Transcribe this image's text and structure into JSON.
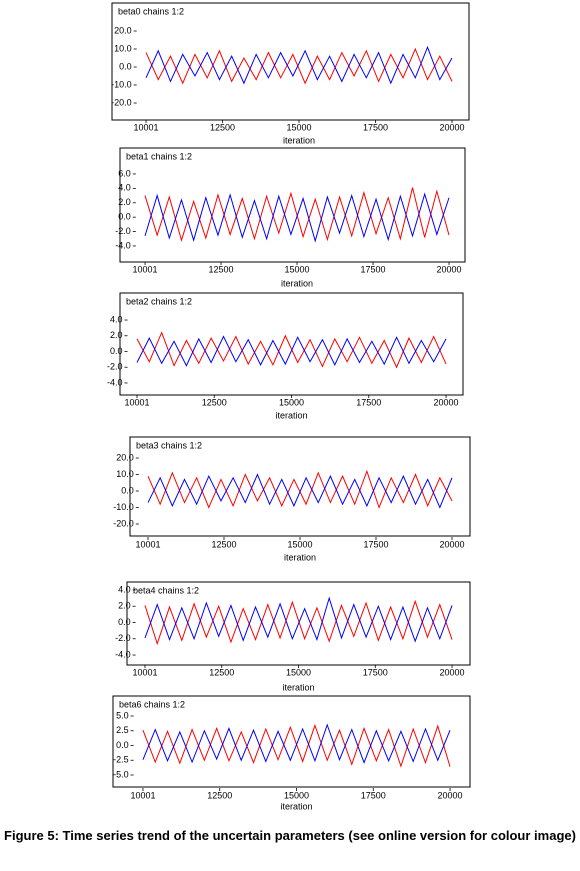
{
  "chart_data": [
    {
      "type": "line",
      "title": "beta0 chains 1:2",
      "x_label": "iteration",
      "x": [
        10001,
        10400,
        10800,
        11200,
        11600,
        12000,
        12400,
        12800,
        13200,
        13600,
        14000,
        14400,
        14800,
        15200,
        15600,
        16000,
        16400,
        16800,
        17200,
        17600,
        18000,
        18400,
        18800,
        19200,
        19600,
        20000
      ],
      "series": [
        {
          "color": "#ff0000",
          "values": [
            8,
            -7,
            6,
            -9,
            7,
            -6,
            9,
            -8,
            5,
            -7,
            8,
            -6,
            7,
            -9,
            6,
            -7,
            8,
            -5,
            9,
            -8,
            7,
            -6,
            10,
            -7,
            6,
            -8
          ]
        },
        {
          "color": "#0000ff",
          "values": [
            -6,
            9,
            -8,
            7,
            -5,
            8,
            -7,
            6,
            -9,
            7,
            -6,
            8,
            -5,
            9,
            -7,
            6,
            -8,
            7,
            -6,
            8,
            -9,
            7,
            -6,
            11,
            -7,
            5
          ]
        }
      ],
      "xlim": [
        9500,
        20500
      ],
      "xticks": [
        10001,
        12500,
        15000,
        17500,
        20000
      ],
      "ylim": [
        -25,
        25
      ],
      "yticks": [
        {
          "value": 20,
          "label": "20.0"
        },
        {
          "value": 10,
          "label": "10.0"
        },
        {
          "value": 0,
          "label": "0.0"
        },
        {
          "value": -10,
          "label": "-10.0"
        },
        {
          "value": -20,
          "label": "-20.0"
        }
      ]
    },
    {
      "type": "line",
      "title": "beta1 chains 1:2",
      "x_label": "iteration",
      "x": [
        10001,
        10400,
        10800,
        11200,
        11600,
        12000,
        12400,
        12800,
        13200,
        13600,
        14000,
        14400,
        14800,
        15200,
        15600,
        16000,
        16400,
        16800,
        17200,
        17600,
        18000,
        18400,
        18800,
        19200,
        19600,
        20000
      ],
      "series": [
        {
          "color": "#ff0000",
          "values": [
            3,
            -2.5,
            2.8,
            -3.2,
            2.2,
            -2.9,
            3.1,
            -2.4,
            2.6,
            -3.0,
            2.9,
            -2.2,
            3.3,
            -2.7,
            2.5,
            -3.1,
            2.8,
            -2.6,
            3.4,
            -2.3,
            2.7,
            -3.0,
            4.1,
            -2.8,
            3.6,
            -2.5
          ]
        },
        {
          "color": "#0000ff",
          "values": [
            -2.6,
            3.0,
            -2.9,
            2.4,
            -3.2,
            2.7,
            -2.5,
            3.1,
            -2.8,
            2.3,
            -3.0,
            2.9,
            -2.4,
            2.6,
            -3.3,
            2.8,
            -2.2,
            3.0,
            -2.7,
            2.5,
            -3.1,
            2.9,
            -2.6,
            3.2,
            -2.4,
            2.7
          ]
        }
      ],
      "xlim": [
        9500,
        20500
      ],
      "xticks": [
        10001,
        12500,
        15000,
        17500,
        20000
      ],
      "ylim": [
        -5.2,
        7.3
      ],
      "yticks": [
        {
          "value": 6,
          "label": "6.0"
        },
        {
          "value": 4,
          "label": "4.0"
        },
        {
          "value": 2,
          "label": "2.0"
        },
        {
          "value": 0,
          "label": "0.0"
        },
        {
          "value": -2,
          "label": "-2.0"
        },
        {
          "value": -4,
          "label": "-4.0"
        }
      ]
    },
    {
      "type": "line",
      "title": "beta2 chains 1:2",
      "x_label": "iteration",
      "x": [
        10001,
        10400,
        10800,
        11200,
        11600,
        12000,
        12400,
        12800,
        13200,
        13600,
        14000,
        14400,
        14800,
        15200,
        15600,
        16000,
        16400,
        16800,
        17200,
        17600,
        18000,
        18400,
        18800,
        19200,
        19600,
        20000
      ],
      "series": [
        {
          "color": "#ff0000",
          "values": [
            1.6,
            -1.3,
            2.4,
            -1.8,
            1.4,
            -1.5,
            1.7,
            -1.2,
            1.9,
            -1.6,
            1.3,
            -1.7,
            2.0,
            -1.4,
            1.5,
            -1.9,
            1.6,
            -1.3,
            1.8,
            -1.5,
            1.4,
            -2.0,
            1.7,
            -1.4,
            1.9,
            -1.6
          ]
        },
        {
          "color": "#0000ff",
          "values": [
            -1.4,
            1.7,
            -1.5,
            1.3,
            -1.8,
            1.6,
            -1.4,
            1.9,
            -1.3,
            1.5,
            -1.7,
            1.4,
            -1.6,
            1.8,
            -1.3,
            1.5,
            -1.7,
            1.6,
            -1.4,
            1.3,
            -1.6,
            1.8,
            -1.5,
            1.4,
            -1.3,
            1.6
          ]
        }
      ],
      "xlim": [
        9500,
        20500
      ],
      "xticks": [
        10001,
        12500,
        15000,
        17500,
        20000
      ],
      "ylim": [
        -4.6,
        4.6
      ],
      "yticks": [
        {
          "value": 4,
          "label": "4.0"
        },
        {
          "value": 2,
          "label": "2.0"
        },
        {
          "value": 0,
          "label": "0.0"
        },
        {
          "value": -2,
          "label": "-2.0"
        },
        {
          "value": -4,
          "label": "-4.0"
        }
      ]
    },
    {
      "type": "line",
      "title": "beta3 chains 1:2",
      "x_label": "iteration",
      "x": [
        10001,
        10400,
        10800,
        11200,
        11600,
        12000,
        12400,
        12800,
        13200,
        13600,
        14000,
        14400,
        14800,
        15200,
        15600,
        16000,
        16400,
        16800,
        17200,
        17600,
        18000,
        18400,
        18800,
        19200,
        19600,
        20000
      ],
      "series": [
        {
          "color": "#ff0000",
          "values": [
            9,
            -8,
            11,
            -7,
            8,
            -10,
            7,
            -9,
            10,
            -6,
            8,
            -9,
            7,
            -8,
            11,
            -7,
            9,
            -8,
            12,
            -10,
            8,
            -7,
            10,
            -9,
            8,
            -6
          ]
        },
        {
          "color": "#0000ff",
          "values": [
            -7,
            8,
            -9,
            7,
            -8,
            9,
            -6,
            8,
            -7,
            10,
            -8,
            7,
            -9,
            8,
            -7,
            9,
            -8,
            7,
            -9,
            8,
            -7,
            9,
            -8,
            7,
            -10,
            8
          ]
        }
      ],
      "xlim": [
        9500,
        20500
      ],
      "xticks": [
        10001,
        12500,
        15000,
        17500,
        20000
      ],
      "ylim": [
        -25,
        25
      ],
      "yticks": [
        {
          "value": 20,
          "label": "20.0"
        },
        {
          "value": 10,
          "label": "10.0"
        },
        {
          "value": 0,
          "label": "0.0"
        },
        {
          "value": -10,
          "label": "-10.0"
        },
        {
          "value": -20,
          "label": "-20.0"
        }
      ]
    },
    {
      "type": "line",
      "title": "beta4 chains 1:2",
      "x_label": "iteration",
      "x": [
        10001,
        10400,
        10800,
        11200,
        11600,
        12000,
        12400,
        12800,
        13200,
        13600,
        14000,
        14400,
        14800,
        15200,
        15600,
        16000,
        16400,
        16800,
        17200,
        17600,
        18000,
        18400,
        18800,
        19200,
        19600,
        20000
      ],
      "series": [
        {
          "color": "#ff0000",
          "values": [
            2.1,
            -2.6,
            1.9,
            -2.2,
            2.3,
            -1.8,
            2.0,
            -2.4,
            1.7,
            -2.1,
            2.2,
            -1.9,
            2.5,
            -2.0,
            1.8,
            -2.3,
            2.1,
            -1.7,
            2.4,
            -2.2,
            1.9,
            -2.0,
            2.6,
            -1.8,
            2.2,
            -2.1
          ]
        },
        {
          "color": "#0000ff",
          "values": [
            -1.9,
            2.2,
            -2.1,
            1.8,
            -2.0,
            2.4,
            -1.7,
            2.1,
            -2.2,
            1.9,
            -1.8,
            2.3,
            -2.0,
            1.7,
            -2.1,
            3.0,
            -1.9,
            2.2,
            -1.8,
            2.0,
            -2.1,
            1.9,
            -2.3,
            1.8,
            -2.0,
            2.1
          ]
        }
      ],
      "xlim": [
        9500,
        20500
      ],
      "xticks": [
        10001,
        12500,
        15000,
        17500,
        20000
      ],
      "ylim": [
        -4.6,
        4.6
      ],
      "yticks": [
        {
          "value": 4,
          "label": "4.0"
        },
        {
          "value": 2,
          "label": "2.0"
        },
        {
          "value": 0,
          "label": "0.0"
        },
        {
          "value": -2,
          "label": "-2.0"
        },
        {
          "value": -4,
          "label": "-4.0"
        }
      ]
    },
    {
      "type": "line",
      "title": "beta6 chains 1:2",
      "x_label": "iteration",
      "x": [
        10001,
        10400,
        10800,
        11200,
        11600,
        12000,
        12400,
        12800,
        13200,
        13600,
        14000,
        14400,
        14800,
        15200,
        15600,
        16000,
        16400,
        16800,
        17200,
        17600,
        18000,
        18400,
        18800,
        19200,
        19600,
        20000
      ],
      "series": [
        {
          "color": "#ff0000",
          "values": [
            2.6,
            -2.8,
            2.4,
            -3.0,
            2.7,
            -2.5,
            2.9,
            -2.6,
            2.3,
            -2.9,
            2.8,
            -2.4,
            3.1,
            -2.7,
            3.4,
            -2.5,
            2.6,
            -3.2,
            2.9,
            -2.6,
            2.7,
            -3.5,
            2.8,
            -2.9,
            3.3,
            -3.6
          ]
        },
        {
          "color": "#0000ff",
          "values": [
            -2.4,
            2.7,
            -2.6,
            2.3,
            -2.8,
            2.5,
            -2.3,
            2.9,
            -2.5,
            2.6,
            -2.7,
            2.4,
            -2.5,
            2.8,
            -2.6,
            3.5,
            -2.4,
            2.7,
            -2.9,
            2.5,
            -2.6,
            2.4,
            -2.7,
            2.8,
            -2.5,
            2.6
          ]
        }
      ],
      "xlim": [
        9500,
        20500
      ],
      "xticks": [
        10001,
        12500,
        15000,
        17500,
        20000
      ],
      "ylim": [
        -6.5,
        6.5
      ],
      "yticks": [
        {
          "value": 5,
          "label": "5.0"
        },
        {
          "value": 2.5,
          "label": "2.5"
        },
        {
          "value": 0,
          "label": "0.0"
        },
        {
          "value": -2.5,
          "label": "-2.5"
        },
        {
          "value": -5,
          "label": "-5.0"
        }
      ]
    }
  ],
  "caption": "Figure 5: Time series trend of the uncertain parameters (see online version for colour image)"
}
